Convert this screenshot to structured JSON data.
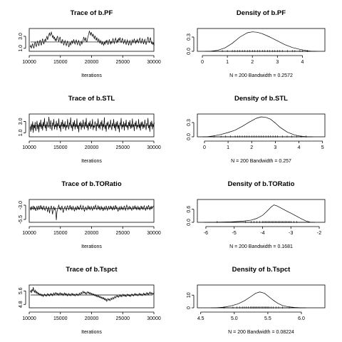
{
  "chart_data": [
    {
      "type": "line",
      "title": "Trace of b.PF",
      "xlabel": "Iterations",
      "x_ticks": [
        10000,
        15000,
        20000,
        25000,
        30000
      ],
      "y_ticks": [
        "1.0",
        "3.0"
      ],
      "xlim": [
        10000,
        30000
      ],
      "ylim": [
        0.5,
        4.3
      ],
      "mean": 2.05,
      "x_start": 10150,
      "x_step": 100,
      "y": [
        1.2,
        1.5,
        1.0,
        1.4,
        1.8,
        1.3,
        1.0,
        1.6,
        2.1,
        1.5,
        1.3,
        1.9,
        2.2,
        1.7,
        1.4,
        2.0,
        2.4,
        1.8,
        1.5,
        2.2,
        2.6,
        2.0,
        1.7,
        2.3,
        2.5,
        2.1,
        2.7,
        3.0,
        2.4,
        2.8,
        3.2,
        3.6,
        3.1,
        3.4,
        3.7,
        3.2,
        2.8,
        3.1,
        2.6,
        2.9,
        2.3,
        2.6,
        2.2,
        2.8,
        3.0,
        2.5,
        2.1,
        2.6,
        2.9,
        2.3,
        1.8,
        2.2,
        2.5,
        1.9,
        1.5,
        2.0,
        2.3,
        1.8,
        1.4,
        1.9,
        2.2,
        1.7,
        1.2,
        1.6,
        2.0,
        1.5,
        1.9,
        2.3,
        1.8,
        2.1,
        2.5,
        2.0,
        1.7,
        2.2,
        2.4,
        1.9,
        1.6,
        2.1,
        2.3,
        1.8,
        1.4,
        1.9,
        2.2,
        1.7,
        2.0,
        2.4,
        2.9,
        2.5,
        2.2,
        2.8,
        2.3,
        2.0,
        2.6,
        3.0,
        3.4,
        3.9,
        3.5,
        3.2,
        3.7,
        3.3,
        3.0,
        3.4,
        2.9,
        2.6,
        3.1,
        2.7,
        2.3,
        2.8,
        2.4,
        2.1,
        2.6,
        2.2,
        1.8,
        2.3,
        2.0,
        1.6,
        2.1,
        1.8,
        1.5,
        2.0,
        1.7,
        2.2,
        1.9,
        2.4,
        2.0,
        1.6,
        2.1,
        2.5,
        2.0,
        1.7,
        2.2,
        1.8,
        2.3,
        2.6,
        2.1,
        1.8,
        2.4,
        2.7,
        2.2,
        1.9,
        2.4,
        2.1,
        2.6,
        2.3,
        2.8,
        2.4,
        1.9,
        2.3,
        2.7,
        2.2,
        1.8,
        2.1,
        2.5,
        2.0,
        1.6,
        2.1,
        2.4,
        1.9,
        1.5,
        2.0,
        2.3,
        1.8,
        1.5,
        2.1,
        2.4,
        1.9,
        2.2,
        2.6,
        2.1,
        1.8,
        2.3,
        2.0,
        2.5,
        2.2,
        1.9,
        2.4,
        2.7,
        2.2,
        1.8,
        2.3,
        2.6,
        2.1,
        1.7,
        2.2,
        2.5,
        2.0,
        1.6,
        2.1,
        2.5,
        2.9,
        2.3,
        1.9,
        2.4,
        2.8,
        2.2,
        1.7,
        2.1,
        1.6,
        2.0,
        1.5
      ]
    },
    {
      "type": "area",
      "title": "Density of b.PF",
      "xlabel": "N = 200   Bandwidth = 0.2572",
      "x_ticks": [
        "0",
        "1",
        "2",
        "3",
        "4"
      ],
      "y_ticks": [
        "0.0",
        "0.3"
      ],
      "xlim": [
        -0.2,
        4.9
      ],
      "ylim": [
        0,
        0.48
      ],
      "x": [
        0.3,
        0.6,
        0.9,
        1.2,
        1.5,
        1.8,
        2.0,
        2.2,
        2.4,
        2.7,
        3.0,
        3.3,
        3.6,
        3.9,
        4.2,
        4.4
      ],
      "y": [
        0.0,
        0.02,
        0.07,
        0.17,
        0.3,
        0.39,
        0.41,
        0.4,
        0.37,
        0.3,
        0.22,
        0.14,
        0.08,
        0.04,
        0.01,
        0.0
      ],
      "rug": [
        0.8,
        1.0,
        1.2,
        1.3,
        1.4,
        1.5,
        1.6,
        1.7,
        1.8,
        1.9,
        2.0,
        2.1,
        2.2,
        2.3,
        2.4,
        2.5,
        2.6,
        2.7,
        2.8,
        2.9,
        3.0,
        3.1,
        3.2,
        3.4,
        3.6,
        3.7,
        3.9,
        4.0,
        4.2
      ]
    },
    {
      "type": "line",
      "title": "Trace of b.STL",
      "xlabel": "Iterations",
      "x_ticks": [
        10000,
        15000,
        20000,
        25000,
        30000
      ],
      "y_ticks": [
        "1.0",
        "3.0"
      ],
      "xlim": [
        10000,
        30000
      ],
      "ylim": [
        0.3,
        4.3
      ],
      "mean": 2.2,
      "x_start": 10150,
      "x_step": 100,
      "y": [
        2.1,
        1.2,
        2.6,
        1.5,
        3.0,
        1.0,
        2.4,
        1.8,
        2.9,
        1.3,
        2.2,
        3.1,
        1.6,
        2.5,
        1.1,
        2.8,
        2.0,
        3.3,
        1.7,
        2.6,
        1.4,
        2.9,
        2.2,
        3.6,
        1.8,
        2.5,
        1.3,
        3.0,
        2.4,
        1.9,
        3.8,
        2.6,
        1.7,
        3.2,
        2.1,
        1.4,
        2.8,
        2.3,
        3.4,
        1.6,
        2.5,
        2.0,
        3.1,
        1.5,
        2.7,
        2.2,
        3.5,
        1.8,
        2.4,
        1.2,
        2.9,
        2.1,
        3.3,
        1.7,
        2.6,
        2.0,
        3.0,
        1.4,
        2.4,
        1.9,
        3.4,
        2.2,
        1.6,
        2.8,
        2.3,
        3.7,
        1.8,
        2.5,
        1.3,
        2.9,
        2.1,
        3.2,
        1.6,
        2.6,
        2.0,
        3.5,
        1.7,
        2.4,
        1.1,
        2.8,
        2.2,
        3.0,
        1.5,
        2.7,
        1.9,
        3.3,
        2.3,
        1.6,
        2.9,
        2.1,
        3.6,
        1.8,
        2.5,
        1.4,
        2.8,
        2.2,
        3.1,
        1.7,
        2.6,
        2.0,
        3.4,
        1.5,
        2.3,
        1.9,
        3.0,
        2.4,
        1.3,
        2.7,
        2.1,
        3.5,
        1.8,
        2.5,
        1.6,
        2.9,
        2.2,
        3.2,
        1.4,
        2.6,
        2.0,
        3.7,
        1.7,
        2.4,
        1.2,
        2.8,
        2.3,
        3.0,
        1.6,
        2.5,
        1.9,
        3.3,
        2.1,
        1.5,
        2.7,
        2.2,
        3.4,
        1.8,
        2.6,
        1.3,
        2.9,
        2.0,
        3.1,
        1.7,
        2.4,
        1.1,
        2.8,
        2.3,
        3.6,
        1.6,
        2.5,
        2.0,
        3.0,
        1.4,
        2.7,
        2.1,
        3.3,
        1.9,
        2.4,
        1.5,
        2.9,
        2.2,
        3.2,
        1.7,
        2.6,
        1.8,
        3.5,
        2.0,
        2.5,
        1.3,
        2.8,
        2.2,
        3.1,
        1.6,
        2.4,
        2.0,
        3.4,
        1.8,
        2.6,
        1.4,
        2.9,
        2.1,
        3.0,
        1.7,
        2.5,
        1.9,
        3.3,
        2.2,
        1.5,
        2.7,
        2.3,
        3.6,
        1.8,
        2.4,
        1.2,
        2.9,
        2.1,
        3.1,
        1.6,
        2.6,
        2.0,
        2.8
      ]
    },
    {
      "type": "area",
      "title": "Density of b.STL",
      "xlabel": "N = 200   Bandwidth = 0.257",
      "x_ticks": [
        "0",
        "1",
        "2",
        "3",
        "4",
        "5"
      ],
      "y_ticks": [
        "0.0",
        "0.3"
      ],
      "xlim": [
        -0.3,
        5.1
      ],
      "ylim": [
        0,
        0.48
      ],
      "x": [
        0.1,
        0.4,
        0.7,
        1.0,
        1.3,
        1.6,
        1.9,
        2.2,
        2.4,
        2.6,
        2.8,
        3.0,
        3.2,
        3.5,
        3.8,
        4.1,
        4.4
      ],
      "y": [
        0.0,
        0.02,
        0.05,
        0.09,
        0.14,
        0.22,
        0.31,
        0.39,
        0.42,
        0.41,
        0.37,
        0.29,
        0.2,
        0.1,
        0.04,
        0.01,
        0.0
      ],
      "rug": [
        0.4,
        0.7,
        0.9,
        1.1,
        1.3,
        1.4,
        1.5,
        1.6,
        1.7,
        1.8,
        1.9,
        2.0,
        2.1,
        2.2,
        2.3,
        2.4,
        2.5,
        2.6,
        2.7,
        2.8,
        2.9,
        3.0,
        3.1,
        3.3,
        3.5,
        3.7,
        3.9,
        4.1,
        4.3
      ]
    },
    {
      "type": "line",
      "title": "Trace of b.TORatio",
      "xlabel": "Iterations",
      "x_ticks": [
        10000,
        15000,
        20000,
        25000,
        30000
      ],
      "y_ticks": [
        "-5.5",
        "-3.0"
      ],
      "xlim": [
        10000,
        30000
      ],
      "ylim": [
        -6.0,
        -2.0
      ],
      "mean": -3.6,
      "x_start": 10150,
      "x_step": 100,
      "y": [
        -3.4,
        -3.9,
        -3.2,
        -3.7,
        -3.5,
        -3.1,
        -3.8,
        -3.3,
        -3.6,
        -4.0,
        -3.4,
        -3.2,
        -3.9,
        -3.5,
        -3.1,
        -3.7,
        -3.4,
        -3.0,
        -3.6,
        -3.3,
        -3.8,
        -3.5,
        -3.1,
        -3.7,
        -3.9,
        -3.4,
        -3.2,
        -3.6,
        -4.2,
        -3.5,
        -3.3,
        -4.4,
        -3.8,
        -3.4,
        -3.1,
        -3.9,
        -4.6,
        -3.6,
        -3.2,
        -3.8,
        -3.5,
        -4.1,
        -5.6,
        -4.2,
        -3.7,
        -3.3,
        -3.0,
        -3.6,
        -3.4,
        -3.9,
        -3.5,
        -3.1,
        -3.7,
        -4.3,
        -3.8,
        -3.4,
        -3.2,
        -3.6,
        -3.9,
        -3.3,
        -3.1,
        -3.5,
        -3.8,
        -3.4,
        -3.0,
        -3.6,
        -3.3,
        -3.9,
        -3.5,
        -3.2,
        -3.7,
        -4.0,
        -3.6,
        -3.3,
        -3.9,
        -3.5,
        -3.1,
        -3.7,
        -3.4,
        -3.8,
        -3.3,
        -3.0,
        -3.5,
        -3.8,
        -3.4,
        -3.1,
        -3.6,
        -4.1,
        -3.7,
        -3.3,
        -3.5,
        -3.9,
        -3.4,
        -3.1,
        -3.6,
        -3.3,
        -3.8,
        -3.5,
        -3.2,
        -3.6,
        -3.9,
        -3.4,
        -3.2,
        -3.7,
        -3.3,
        -3.0,
        -3.5,
        -3.8,
        -3.4,
        -3.1,
        -3.6,
        -3.3,
        -3.9,
        -3.5,
        -3.2,
        -3.7,
        -3.4,
        -4.0,
        -3.6,
        -3.3,
        -3.8,
        -3.5,
        -3.1,
        -3.6,
        -3.9,
        -3.4,
        -3.2,
        -3.7,
        -3.5,
        -3.1,
        -3.6,
        -3.3,
        -3.9,
        -3.5,
        -3.2,
        -3.8,
        -3.4,
        -3.0,
        -3.6,
        -3.3,
        -3.7,
        -4.1,
        -3.6,
        -3.3,
        -3.9,
        -3.5,
        -3.2,
        -3.7,
        -3.4,
        -3.8,
        -3.5,
        -3.1,
        -3.6,
        -3.9,
        -3.3,
        -3.0,
        -3.5,
        -3.8,
        -3.4,
        -3.2,
        -3.7,
        -3.3,
        -3.6,
        -3.9,
        -3.5,
        -3.2,
        -3.7,
        -3.4,
        -3.1,
        -3.6,
        -3.3,
        -3.8,
        -3.5,
        -3.2,
        -3.7,
        -3.4,
        -3.9,
        -3.5,
        -3.1,
        -3.6,
        -3.3,
        -3.8,
        -3.4,
        -3.1,
        -3.6,
        -3.9,
        -3.5,
        -3.2,
        -3.7,
        -3.4,
        -3.0,
        -3.5,
        -3.8,
        -3.3,
        -3.6,
        -3.2,
        -3.5,
        -3.3,
        -3.1
      ]
    },
    {
      "type": "area",
      "title": "Density of b.TORatio",
      "xlabel": "N = 200   Bandwidth = 0.1681",
      "x_ticks": [
        "-6",
        "-5",
        "-4",
        "-3",
        "-2"
      ],
      "y_ticks": [
        "0.0",
        "0.6"
      ],
      "xlim": [
        -6.3,
        -1.8
      ],
      "ylim": [
        0,
        1.05
      ],
      "x": [
        -5.9,
        -5.5,
        -5.1,
        -4.7,
        -4.4,
        -4.2,
        -4.0,
        -3.85,
        -3.7,
        -3.6,
        -3.5,
        -3.35,
        -3.2,
        -3.0,
        -2.8,
        -2.6,
        -2.45,
        -2.3
      ],
      "y": [
        0.0,
        0.01,
        0.02,
        0.05,
        0.1,
        0.18,
        0.32,
        0.5,
        0.7,
        0.8,
        0.76,
        0.66,
        0.55,
        0.42,
        0.28,
        0.14,
        0.05,
        0.0
      ],
      "rug": [
        -5.6,
        -4.6,
        -4.4,
        -4.3,
        -4.2,
        -4.1,
        -4.0,
        -3.95,
        -3.9,
        -3.85,
        -3.8,
        -3.75,
        -3.7,
        -3.65,
        -3.6,
        -3.55,
        -3.5,
        -3.45,
        -3.4,
        -3.35,
        -3.3,
        -3.25,
        -3.2,
        -3.15,
        -3.1,
        -3.05,
        -3.0,
        -2.9,
        -2.8
      ]
    },
    {
      "type": "line",
      "title": "Trace of b.Tspct",
      "xlabel": "Iterations",
      "x_ticks": [
        10000,
        15000,
        20000,
        25000,
        30000
      ],
      "y_ticks": [
        "4.8",
        "5.6"
      ],
      "xlim": [
        10000,
        30000
      ],
      "ylim": [
        4.6,
        5.95
      ],
      "mean": 5.36,
      "x_start": 10150,
      "x_step": 100,
      "y": [
        5.55,
        5.62,
        5.48,
        5.7,
        5.58,
        5.82,
        5.6,
        5.52,
        5.66,
        5.48,
        5.58,
        5.44,
        5.52,
        5.4,
        5.47,
        5.36,
        5.43,
        5.33,
        5.41,
        5.3,
        5.38,
        5.27,
        5.35,
        5.42,
        5.32,
        5.38,
        5.28,
        5.36,
        5.44,
        5.33,
        5.4,
        5.3,
        5.37,
        5.45,
        5.35,
        5.42,
        5.31,
        5.39,
        5.48,
        5.36,
        5.44,
        5.5,
        5.41,
        5.47,
        5.38,
        5.45,
        5.34,
        5.42,
        5.49,
        5.39,
        5.46,
        5.37,
        5.44,
        5.33,
        5.41,
        5.48,
        5.38,
        5.45,
        5.35,
        5.43,
        5.3,
        5.38,
        5.45,
        5.34,
        5.41,
        5.31,
        5.39,
        5.46,
        5.36,
        5.43,
        5.33,
        5.4,
        5.3,
        5.38,
        5.44,
        5.35,
        5.41,
        5.32,
        5.39,
        5.47,
        5.37,
        5.44,
        5.52,
        5.42,
        5.49,
        5.58,
        5.47,
        5.54,
        5.45,
        5.51,
        5.4,
        5.48,
        5.55,
        5.46,
        5.53,
        5.43,
        5.5,
        5.41,
        5.47,
        5.38,
        5.44,
        5.35,
        5.42,
        5.32,
        5.39,
        5.29,
        5.36,
        5.26,
        5.33,
        5.24,
        5.31,
        5.21,
        5.28,
        5.18,
        5.25,
        5.15,
        5.22,
        5.12,
        5.2,
        5.08,
        5.16,
        5.04,
        5.12,
        4.98,
        5.08,
        5.15,
        5.05,
        5.12,
        5.02,
        5.1,
        5.18,
        5.08,
        5.15,
        5.22,
        5.12,
        5.2,
        5.28,
        5.18,
        5.25,
        5.33,
        5.24,
        5.31,
        5.22,
        5.29,
        5.37,
        5.27,
        5.34,
        5.25,
        5.32,
        5.4,
        5.3,
        5.37,
        5.28,
        5.35,
        5.26,
        5.33,
        5.41,
        5.31,
        5.38,
        5.29,
        5.36,
        5.27,
        5.34,
        5.42,
        5.32,
        5.39,
        5.3,
        5.37,
        5.45,
        5.35,
        5.42,
        5.33,
        5.4,
        5.31,
        5.38,
        5.46,
        5.36,
        5.43,
        5.34,
        5.41,
        5.32,
        5.39,
        5.47,
        5.37,
        5.44,
        5.35,
        5.42,
        5.5,
        5.4,
        5.47,
        5.38,
        5.45,
        5.53,
        5.43,
        5.5,
        5.41,
        5.48,
        5.39,
        5.46,
        5.52
      ]
    },
    {
      "type": "area",
      "title": "Density of b.Tspct",
      "xlabel": "N = 200   Bandwidth = 0.08224",
      "x_ticks": [
        "4.5",
        "5.0",
        "5.5",
        "6.0"
      ],
      "y_ticks": [
        "0",
        "10"
      ],
      "xlim": [
        4.45,
        6.35
      ],
      "ylim": [
        0,
        18
      ],
      "x": [
        4.72,
        4.85,
        4.95,
        5.05,
        5.15,
        5.25,
        5.32,
        5.38,
        5.45,
        5.52,
        5.58,
        5.65,
        5.72,
        5.8,
        5.9,
        6.0
      ],
      "y": [
        0.0,
        0.5,
        1.5,
        3.0,
        5.5,
        9.0,
        11.5,
        12.5,
        11.5,
        8.5,
        6.0,
        3.5,
        1.8,
        0.8,
        0.3,
        0.0
      ],
      "rug": [
        4.85,
        4.98,
        5.04,
        5.08,
        5.12,
        5.15,
        5.18,
        5.21,
        5.24,
        5.26,
        5.28,
        5.3,
        5.32,
        5.34,
        5.36,
        5.38,
        5.4,
        5.42,
        5.44,
        5.46,
        5.48,
        5.5,
        5.52,
        5.55,
        5.58,
        5.62,
        5.66,
        5.72,
        5.82
      ]
    }
  ]
}
